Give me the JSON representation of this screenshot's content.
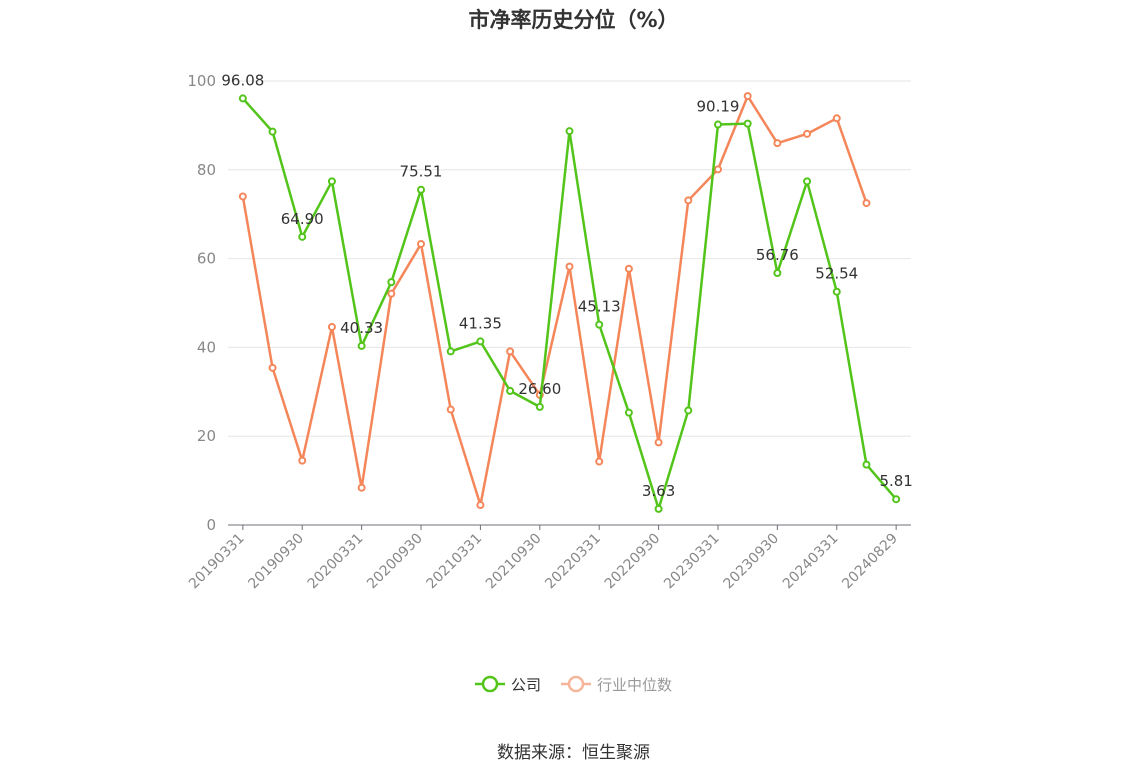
{
  "title": "市净率历史分位（%）",
  "source": "数据来源：恒生聚源",
  "legend": [
    {
      "name": "公司",
      "color": "#52c41a",
      "inactive": false
    },
    {
      "name": "行业中位数",
      "color": "#f5865a",
      "inactive": true
    }
  ],
  "chart_data": {
    "type": "line",
    "ylim": [
      0,
      100
    ],
    "yticks": [
      0,
      20,
      40,
      60,
      80,
      100
    ],
    "grid": true,
    "legend_position": "bottom",
    "x": [
      "20190331",
      "20190630",
      "20190930",
      "20191231",
      "20200331",
      "20200630",
      "20200930",
      "20201231",
      "20210331",
      "20210630",
      "20210930",
      "20211231",
      "20220331",
      "20220630",
      "20220930",
      "20221231",
      "20230331",
      "20230630",
      "20230930",
      "20231231",
      "20240331",
      "20240630",
      "20240829"
    ],
    "xtick_labels": [
      "20190331",
      "20190930",
      "20200331",
      "20200930",
      "20210331",
      "20210930",
      "20220331",
      "20220930",
      "20230331",
      "20230930",
      "20240331",
      "20240829"
    ],
    "series": [
      {
        "name": "公司",
        "color": "#52c41a",
        "values": [
          96.08,
          88.6,
          64.9,
          77.4,
          40.33,
          54.7,
          75.51,
          39.1,
          41.35,
          30.2,
          26.6,
          88.7,
          45.13,
          25.3,
          3.63,
          25.8,
          90.19,
          90.4,
          56.76,
          77.4,
          52.54,
          13.6,
          5.81
        ],
        "labels": {
          "0": "96.08",
          "2": "64.90",
          "4": "40.33",
          "6": "75.51",
          "8": "41.35",
          "10": "26.60",
          "12": "45.13",
          "14": "3.63",
          "16": "90.19",
          "18": "56.76",
          "20": "52.54",
          "22": "5.81"
        }
      },
      {
        "name": "行业中位数",
        "color": "#f5865a",
        "values": [
          74.0,
          35.4,
          14.5,
          44.6,
          8.4,
          52.1,
          63.3,
          26.0,
          4.5,
          39.1,
          29.3,
          58.2,
          14.3,
          57.7,
          18.6,
          73.1,
          80.1,
          96.6,
          86.0,
          88.1,
          91.6,
          72.5,
          null
        ]
      }
    ]
  }
}
